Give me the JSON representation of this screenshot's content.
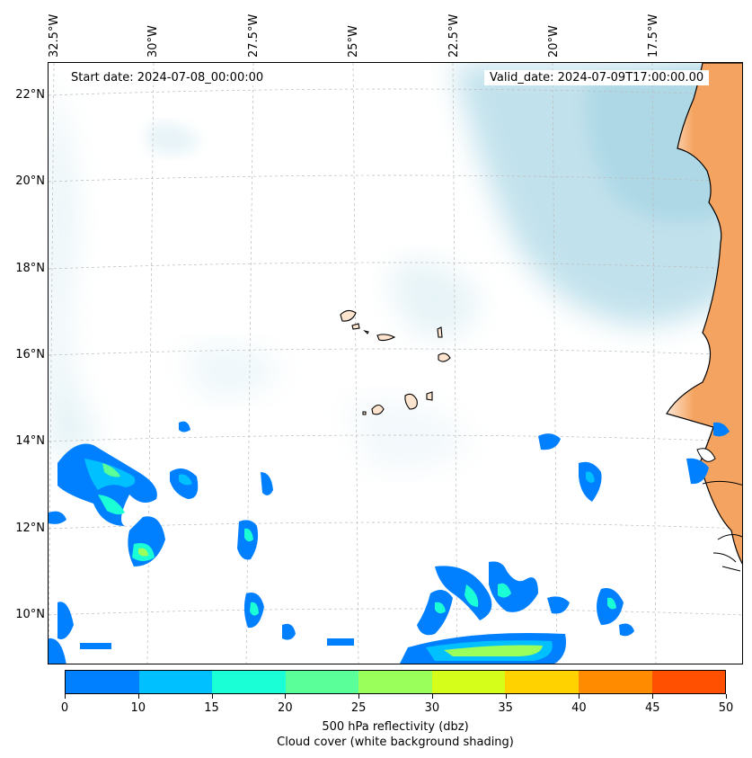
{
  "map": {
    "start_date": "Start date: 2024-07-08_00:00:00",
    "valid_date": "Valid_date: 2024-07-09T17:00:00.00",
    "lon_labels": [
      "32.5°W",
      "30°W",
      "27.5°W",
      "25°W",
      "22.5°W",
      "20°W",
      "17.5°W"
    ],
    "lat_labels": [
      "22°N",
      "20°N",
      "18°N",
      "16°N",
      "14°N",
      "12°N",
      "10°N"
    ],
    "colors": {
      "land": "#f4a460",
      "cloud": "#add8e6",
      "coastline": "#000000",
      "gridline": "#bbbbbb"
    },
    "features": [
      "africa-west-coast",
      "cape-verde-islands",
      "cloud-cover-shading",
      "reflectivity-contours"
    ]
  },
  "colorbar": {
    "ticks": [
      "0",
      "10",
      "15",
      "20",
      "25",
      "30",
      "35",
      "40",
      "45",
      "50"
    ],
    "colors": [
      "#0080ff",
      "#00c0ff",
      "#1affd5",
      "#5bff9a",
      "#9aff5a",
      "#d5ff1a",
      "#ffd200",
      "#ff8c00",
      "#ff4f00"
    ],
    "label_line1": "500 hPa reflectivity (dbz)",
    "label_line2": "Cloud cover (white background shading)"
  }
}
